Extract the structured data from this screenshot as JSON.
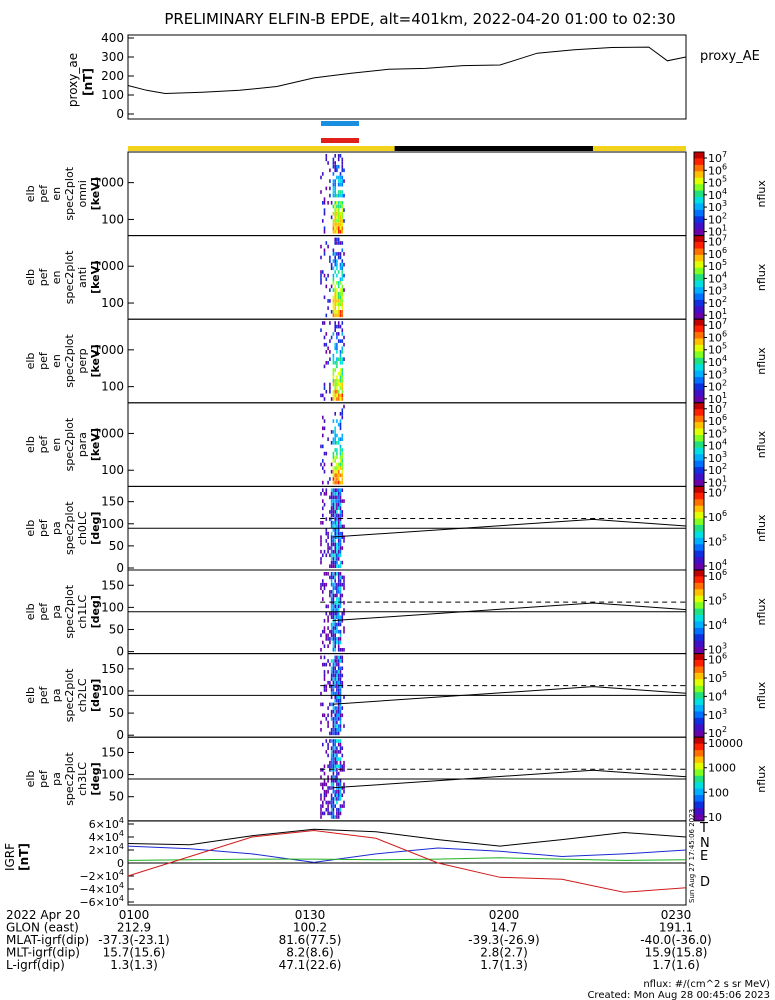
{
  "title": "PRELIMINARY ELFIN-B EPDE, alt=401km, 2022-04-20 01:00 to 02:30",
  "colors": {
    "yellow_bar": "#f2d21a",
    "black_bar": "#000000",
    "blue_marker": "#1a8fe0",
    "red_marker": "#e0201a",
    "igrf_T": "#000000",
    "igrf_N": "#1a2ad0",
    "igrf_E": "#20b020",
    "igrf_D": "#d01a1a"
  },
  "proxy_ae": {
    "ylabel_1": "proxy_ae",
    "ylabel_2": "[nT]",
    "legend": "proxy_AE",
    "ticks": [
      "400",
      "300",
      "200",
      "100",
      "0"
    ]
  },
  "panels": [
    {
      "label": [
        "elb",
        "pef",
        "en",
        "spec2plot",
        "omni",
        "[keV]"
      ],
      "ticks": [
        "1000",
        "100"
      ],
      "kind": "energy"
    },
    {
      "label": [
        "elb",
        "pef",
        "en",
        "spec2plot",
        "anti",
        "[keV]"
      ],
      "ticks": [
        "1000",
        "100"
      ],
      "kind": "energy"
    },
    {
      "label": [
        "elb",
        "pef",
        "en",
        "spec2plot",
        "perp",
        "[keV]"
      ],
      "ticks": [
        "1000",
        "100"
      ],
      "kind": "energy"
    },
    {
      "label": [
        "elb",
        "pef",
        "en",
        "spec2plot",
        "para",
        "[keV]"
      ],
      "ticks": [
        "1000",
        "100"
      ],
      "kind": "energy"
    },
    {
      "label": [
        "elb",
        "pef",
        "pa",
        "spec2plot",
        "ch0LC",
        "[deg]"
      ],
      "ticks": [
        "150",
        "100",
        "50",
        "0"
      ],
      "kind": "pa"
    },
    {
      "label": [
        "elb",
        "pef",
        "pa",
        "spec2plot",
        "ch1LC",
        "[deg]"
      ],
      "ticks": [
        "150",
        "100",
        "50",
        "0"
      ],
      "kind": "pa"
    },
    {
      "label": [
        "elb",
        "pef",
        "pa",
        "spec2plot",
        "ch2LC",
        "[deg]"
      ],
      "ticks": [
        "150",
        "100",
        "50",
        "0"
      ],
      "kind": "pa"
    },
    {
      "label": [
        "elb",
        "pef",
        "pa",
        "spec2plot",
        "ch3LC",
        "[deg]"
      ],
      "ticks": [
        "150",
        "100",
        "50"
      ],
      "kind": "pa"
    }
  ],
  "colorbars": [
    {
      "ticks": [
        "10^7",
        "10^6",
        "10^5",
        "10^4",
        "10^3",
        "10^2",
        "10^1"
      ],
      "label": "nflux"
    },
    {
      "ticks": [
        "10^7",
        "10^6",
        "10^5",
        "10^4",
        "10^3",
        "10^2",
        "10^1"
      ],
      "label": "nflux"
    },
    {
      "ticks": [
        "10^7",
        "10^6",
        "10^5",
        "10^4",
        "10^3",
        "10^2",
        "10^1"
      ],
      "label": "nflux"
    },
    {
      "ticks": [
        "10^7",
        "10^6",
        "10^5",
        "10^4",
        "10^3",
        "10^2",
        "10^1"
      ],
      "label": "nflux"
    },
    {
      "ticks": [
        "10^7",
        "10^6",
        "10^5",
        "10^4"
      ],
      "label": "nflux"
    },
    {
      "ticks": [
        "10^6",
        "10^5",
        "10^4",
        "10^3"
      ],
      "label": "nflux"
    },
    {
      "ticks": [
        "10^6",
        "10^5",
        "10^4",
        "10^3",
        "10^2"
      ],
      "label": "nflux"
    },
    {
      "ticks": [
        "10000",
        "1000",
        "100",
        "10"
      ],
      "label": "nflux"
    }
  ],
  "igrf": {
    "ylabel_1": "IGRF",
    "ylabel_2": "[nT]",
    "ticks": [
      "6×10^4",
      "4×10^4",
      "2×10^4",
      "0",
      "−2×10^4",
      "−4×10^4",
      "−6×10^4"
    ],
    "legend": [
      "T",
      "N",
      "E",
      "D"
    ],
    "stamp": "Sun Aug 27 17:45:06 2023"
  },
  "footer": {
    "rows": [
      {
        "label": "2022 Apr 20",
        "values": [
          "0100",
          "0130",
          "0200",
          "0230"
        ]
      },
      {
        "label": "GLON (east)",
        "values": [
          "212.9",
          "100.2",
          "14.7",
          "191.1"
        ]
      },
      {
        "label": "MLAT-igrf(dip)",
        "values": [
          "-37.3(-23.1)",
          "81.6(77.5)",
          "-39.3(-26.9)",
          "-40.0(-36.0)"
        ]
      },
      {
        "label": "MLT-igrf(dip)",
        "values": [
          "15.7(15.6)",
          "8.2(8.6)",
          "2.8(2.7)",
          "15.9(15.8)"
        ]
      },
      {
        "label": "L-igrf(dip)",
        "values": [
          "1.3(1.3)",
          "47.1(22.6)",
          "1.7(1.3)",
          "1.7(1.6)"
        ]
      }
    ],
    "units": "nflux: #/(cm^2 s sr MeV)",
    "created": "Created: Mon Aug 28 00:45:06 2023"
  },
  "chart_data": {
    "type": "heatmap",
    "title": "PRELIMINARY ELFIN-B EPDE, alt=401km, 2022-04-20 01:00 to 02:30",
    "x_range": [
      "01:00",
      "02:30"
    ],
    "x_ticks": [
      "0100",
      "0130",
      "0200",
      "0230"
    ],
    "proxy_ae": {
      "type": "line",
      "series_name": "proxy_AE",
      "ylim": [
        0,
        400
      ],
      "x": [
        "01:00",
        "01:03",
        "01:06",
        "01:12",
        "01:18",
        "01:24",
        "01:30",
        "01:36",
        "01:42",
        "01:48",
        "01:54",
        "02:00",
        "02:06",
        "02:12",
        "02:18",
        "02:24",
        "02:27",
        "02:30"
      ],
      "y": [
        150,
        125,
        108,
        115,
        125,
        145,
        190,
        215,
        235,
        240,
        255,
        258,
        320,
        338,
        350,
        352,
        280,
        300
      ]
    },
    "science_interval": {
      "start": "01:31",
      "end": "01:35"
    },
    "status_bar": [
      {
        "start": "01:00",
        "end": "01:43",
        "state": "yellow"
      },
      {
        "start": "01:43",
        "end": "02:15",
        "state": "black"
      },
      {
        "start": "02:15",
        "end": "02:30",
        "state": "yellow"
      }
    ],
    "spectrograms": {
      "energy_ylim_keV": [
        60,
        6000
      ],
      "pitch_angle_ylim_deg": [
        0,
        180
      ],
      "data_interval": {
        "start": "01:31",
        "end": "01:35"
      },
      "loss_cone_deg": {
        "x": [
          "01:33",
          "02:15",
          "02:30"
        ],
        "y": [
          70,
          110,
          95
        ]
      },
      "anti_loss_cone_deg": 112,
      "reference_deg": 90
    },
    "igrf": {
      "ylim": [
        -60000,
        60000
      ],
      "series": [
        {
          "name": "T",
          "x": [
            "01:00",
            "01:10",
            "01:20",
            "01:30",
            "01:40",
            "01:50",
            "02:00",
            "02:10",
            "02:20",
            "02:30"
          ],
          "y": [
            30000,
            28000,
            42000,
            52000,
            48000,
            36000,
            26000,
            36000,
            47000,
            40000
          ]
        },
        {
          "name": "N",
          "x": [
            "01:00",
            "01:10",
            "01:20",
            "01:30",
            "01:40",
            "01:50",
            "02:00",
            "02:10",
            "02:20",
            "02:30"
          ],
          "y": [
            26000,
            22000,
            14000,
            1000,
            14000,
            23000,
            18000,
            10000,
            14000,
            20000
          ]
        },
        {
          "name": "E",
          "x": [
            "01:00",
            "01:10",
            "01:20",
            "01:30",
            "01:40",
            "01:50",
            "02:00",
            "02:10",
            "02:20",
            "02:30"
          ],
          "y": [
            4000,
            5000,
            6000,
            6000,
            5000,
            6000,
            8000,
            6000,
            4000,
            5000
          ]
        },
        {
          "name": "D",
          "x": [
            "01:00",
            "01:10",
            "01:20",
            "01:30",
            "01:40",
            "01:50",
            "02:00",
            "02:10",
            "02:20",
            "02:30"
          ],
          "y": [
            -20000,
            10000,
            40000,
            50000,
            38000,
            0,
            -22000,
            -25000,
            -45000,
            -38000
          ]
        }
      ]
    }
  }
}
